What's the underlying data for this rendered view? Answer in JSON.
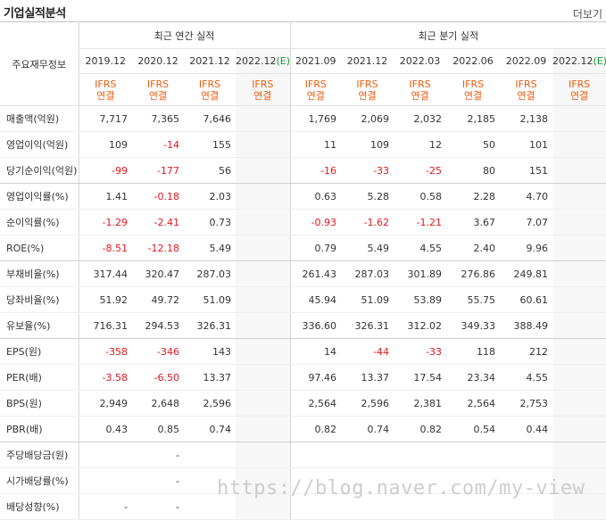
{
  "header": {
    "title": "기업실적분석",
    "more_label": "더보기"
  },
  "table": {
    "row_header_label": "주요재무정보",
    "group_annual": "최근 연간 실적",
    "group_quarter": "최근 분기 실적",
    "periods": [
      "2019.12",
      "2020.12",
      "2021.12",
      "2022.12(E)",
      "2021.09",
      "2021.12",
      "2022.03",
      "2022.06",
      "2022.09",
      "2022.12(E)"
    ],
    "standard_line1": "IFRS",
    "standard_line2": "연결",
    "rows": [
      {
        "label": "매출액(억원)",
        "values": [
          "7,717",
          "7,365",
          "7,646",
          "",
          "1,769",
          "2,069",
          "2,032",
          "2,185",
          "2,138",
          ""
        ]
      },
      {
        "label": "영업이익(억원)",
        "values": [
          "109",
          "-14",
          "155",
          "",
          "11",
          "109",
          "12",
          "50",
          "101",
          ""
        ]
      },
      {
        "label": "당기순이익(억원)",
        "values": [
          "-99",
          "-177",
          "56",
          "",
          "-16",
          "-33",
          "-25",
          "80",
          "151",
          ""
        ]
      },
      {
        "label": "영업이익률(%)",
        "values": [
          "1.41",
          "-0.18",
          "2.03",
          "",
          "0.63",
          "5.28",
          "0.58",
          "2.28",
          "4.70",
          ""
        ]
      },
      {
        "label": "순이익률(%)",
        "values": [
          "-1.29",
          "-2.41",
          "0.73",
          "",
          "-0.93",
          "-1.62",
          "-1.21",
          "3.67",
          "7.07",
          ""
        ]
      },
      {
        "label": "ROE(%)",
        "values": [
          "-8.51",
          "-12.18",
          "5.49",
          "",
          "0.79",
          "5.49",
          "4.55",
          "2.40",
          "9.96",
          ""
        ]
      },
      {
        "label": "부채비율(%)",
        "values": [
          "317.44",
          "320.47",
          "287.03",
          "",
          "261.43",
          "287.03",
          "301.89",
          "276.86",
          "249.81",
          ""
        ]
      },
      {
        "label": "당좌비율(%)",
        "values": [
          "51.92",
          "49.72",
          "51.09",
          "",
          "45.94",
          "51.09",
          "53.89",
          "55.75",
          "60.61",
          ""
        ]
      },
      {
        "label": "유보율(%)",
        "values": [
          "716.31",
          "294.53",
          "326.31",
          "",
          "336.60",
          "326.31",
          "312.02",
          "349.33",
          "388.49",
          ""
        ]
      },
      {
        "label": "EPS(원)",
        "values": [
          "-358",
          "-346",
          "143",
          "",
          "14",
          "-44",
          "-33",
          "118",
          "212",
          ""
        ]
      },
      {
        "label": "PER(배)",
        "values": [
          "-3.58",
          "-6.50",
          "13.37",
          "",
          "97.46",
          "13.37",
          "17.54",
          "23.34",
          "4.55",
          ""
        ]
      },
      {
        "label": "BPS(원)",
        "values": [
          "2,949",
          "2,648",
          "2,596",
          "",
          "2,564",
          "2,596",
          "2,381",
          "2,564",
          "2,753",
          ""
        ]
      },
      {
        "label": "PBR(배)",
        "values": [
          "0.43",
          "0.85",
          "0.74",
          "",
          "0.82",
          "0.74",
          "0.82",
          "0.54",
          "0.44",
          ""
        ]
      },
      {
        "label": "주당배당금(원)",
        "values": [
          "",
          "-",
          "",
          "",
          "",
          "",
          "",
          "",
          "",
          ""
        ]
      },
      {
        "label": "시가배당률(%)",
        "values": [
          "",
          "-",
          "",
          "",
          "",
          "",
          "",
          "",
          "",
          ""
        ]
      },
      {
        "label": "배당성향(%)",
        "values": [
          "-",
          "-",
          "",
          "",
          "",
          "",
          "",
          "",
          "",
          ""
        ]
      }
    ]
  },
  "watermark": "https://blog.naver.com/my-view"
}
